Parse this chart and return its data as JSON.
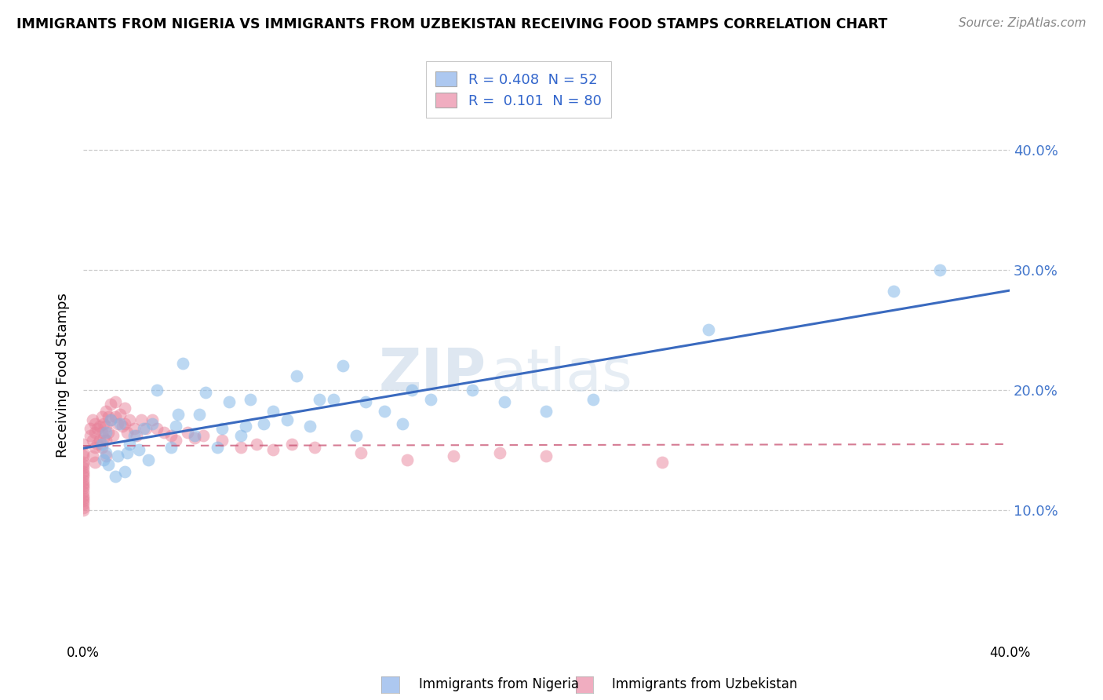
{
  "title": "IMMIGRANTS FROM NIGERIA VS IMMIGRANTS FROM UZBEKISTAN RECEIVING FOOD STAMPS CORRELATION CHART",
  "source": "Source: ZipAtlas.com",
  "ylabel": "Receiving Food Stamps",
  "y_tick_vals": [
    0.1,
    0.2,
    0.3,
    0.4
  ],
  "x_min": 0.0,
  "x_max": 0.4,
  "y_min": -0.01,
  "y_max": 0.435,
  "legend1_label": "R = 0.408  N = 52",
  "legend2_label": "R =  0.101  N = 80",
  "legend_color1": "#adc8f0",
  "legend_color2": "#f0adc0",
  "scatter_color_nigeria": "#85b8e8",
  "scatter_color_uzbekistan": "#e8829a",
  "line_color_nigeria": "#3a6abf",
  "line_color_uzbekistan": "#c85070",
  "watermark_zip": "ZIP",
  "watermark_atlas": "atlas",
  "footer_label1": "Immigrants from Nigeria",
  "footer_label2": "Immigrants from Uzbekistan",
  "nigeria_x": [
    0.008,
    0.009,
    0.01,
    0.01,
    0.011,
    0.012,
    0.014,
    0.015,
    0.016,
    0.018,
    0.019,
    0.02,
    0.022,
    0.024,
    0.026,
    0.028,
    0.03,
    0.032,
    0.038,
    0.04,
    0.041,
    0.043,
    0.048,
    0.05,
    0.053,
    0.058,
    0.06,
    0.063,
    0.068,
    0.07,
    0.072,
    0.078,
    0.082,
    0.088,
    0.092,
    0.098,
    0.102,
    0.108,
    0.112,
    0.118,
    0.122,
    0.13,
    0.138,
    0.142,
    0.15,
    0.168,
    0.182,
    0.2,
    0.22,
    0.27,
    0.35,
    0.37
  ],
  "nigeria_y": [
    0.155,
    0.142,
    0.165,
    0.148,
    0.138,
    0.175,
    0.128,
    0.145,
    0.172,
    0.132,
    0.148,
    0.155,
    0.162,
    0.15,
    0.168,
    0.142,
    0.172,
    0.2,
    0.152,
    0.17,
    0.18,
    0.222,
    0.162,
    0.18,
    0.198,
    0.152,
    0.168,
    0.19,
    0.162,
    0.17,
    0.192,
    0.172,
    0.182,
    0.175,
    0.212,
    0.17,
    0.192,
    0.192,
    0.22,
    0.162,
    0.19,
    0.182,
    0.172,
    0.2,
    0.192,
    0.2,
    0.19,
    0.182,
    0.192,
    0.25,
    0.282,
    0.3
  ],
  "uzbekistan_x": [
    0.0,
    0.0,
    0.0,
    0.0,
    0.0,
    0.0,
    0.0,
    0.0,
    0.0,
    0.0,
    0.0,
    0.0,
    0.0,
    0.0,
    0.0,
    0.0,
    0.0,
    0.0,
    0.0,
    0.0,
    0.003,
    0.003,
    0.004,
    0.004,
    0.004,
    0.005,
    0.005,
    0.005,
    0.005,
    0.006,
    0.006,
    0.007,
    0.007,
    0.008,
    0.008,
    0.008,
    0.009,
    0.009,
    0.01,
    0.01,
    0.01,
    0.01,
    0.011,
    0.011,
    0.012,
    0.012,
    0.013,
    0.014,
    0.014,
    0.015,
    0.016,
    0.017,
    0.018,
    0.018,
    0.019,
    0.02,
    0.022,
    0.023,
    0.025,
    0.027,
    0.03,
    0.032,
    0.035,
    0.038,
    0.04,
    0.045,
    0.048,
    0.052,
    0.06,
    0.068,
    0.075,
    0.082,
    0.09,
    0.1,
    0.12,
    0.14,
    0.16,
    0.18,
    0.2,
    0.25
  ],
  "uzbekistan_y": [
    0.155,
    0.148,
    0.145,
    0.14,
    0.138,
    0.135,
    0.132,
    0.13,
    0.128,
    0.125,
    0.122,
    0.12,
    0.118,
    0.115,
    0.112,
    0.11,
    0.108,
    0.105,
    0.102,
    0.1,
    0.168,
    0.162,
    0.175,
    0.158,
    0.145,
    0.172,
    0.165,
    0.152,
    0.14,
    0.168,
    0.155,
    0.17,
    0.158,
    0.178,
    0.165,
    0.152,
    0.172,
    0.16,
    0.182,
    0.17,
    0.158,
    0.145,
    0.178,
    0.165,
    0.188,
    0.175,
    0.162,
    0.19,
    0.178,
    0.172,
    0.18,
    0.17,
    0.185,
    0.172,
    0.165,
    0.175,
    0.168,
    0.162,
    0.175,
    0.168,
    0.175,
    0.168,
    0.165,
    0.162,
    0.158,
    0.165,
    0.16,
    0.162,
    0.158,
    0.152,
    0.155,
    0.15,
    0.155,
    0.152,
    0.148,
    0.142,
    0.145,
    0.148,
    0.145,
    0.14
  ]
}
